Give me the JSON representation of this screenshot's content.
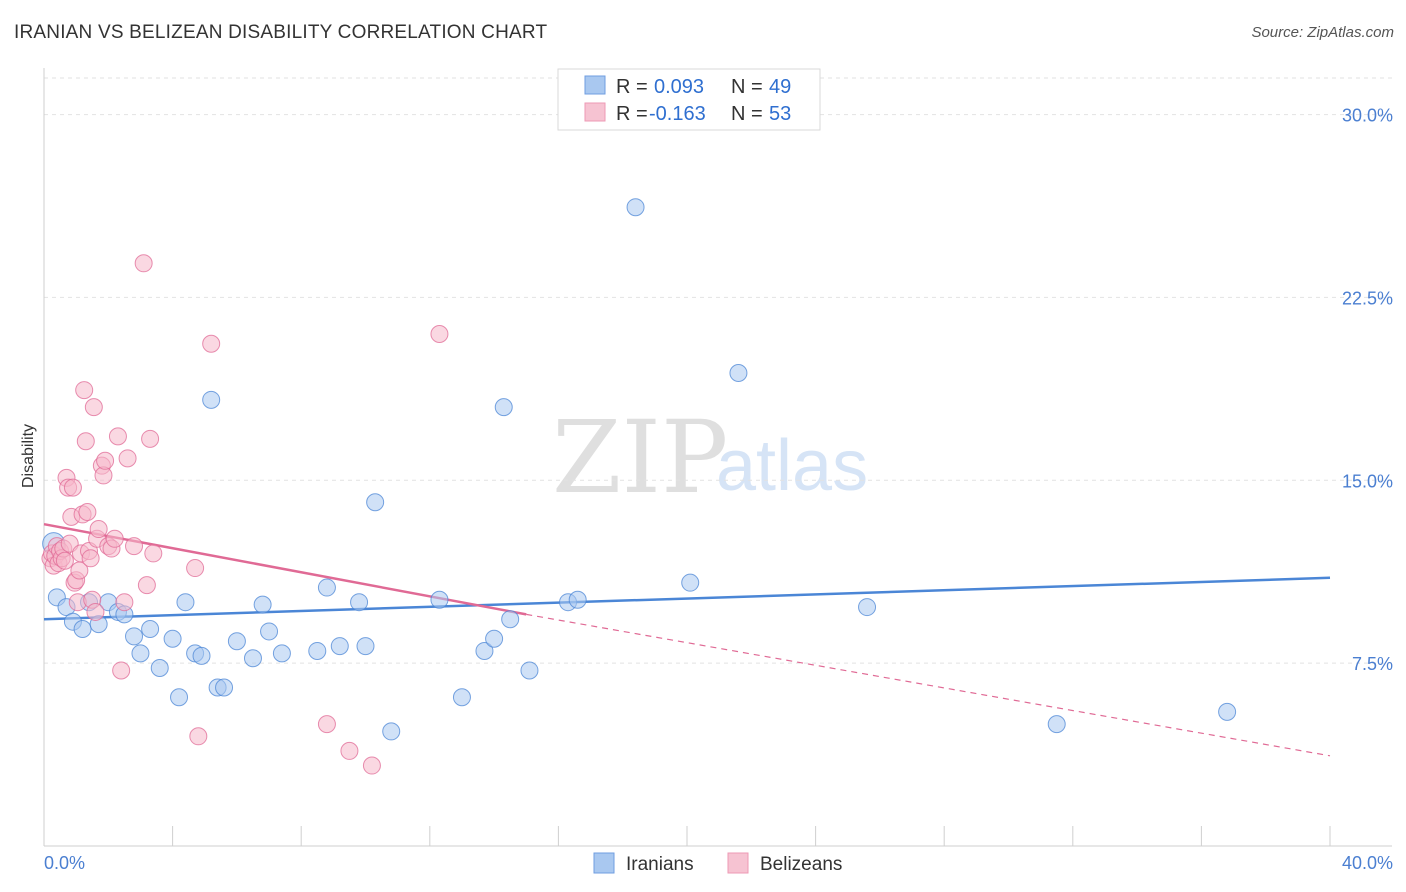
{
  "title": "IRANIAN VS BELIZEAN DISABILITY CORRELATION CHART",
  "source": "Source: ZipAtlas.com",
  "watermark": {
    "zip": "ZIP",
    "atlas": "atlas"
  },
  "legend": {
    "rows": [
      {
        "r_label": "R =",
        "r_value": "0.093",
        "n_label": "N =",
        "n_value": "49",
        "color": "#a9c8f0"
      },
      {
        "r_label": "R =",
        "r_value": "-0.163",
        "n_label": "N =",
        "n_value": "53",
        "color": "#f6b8cb"
      }
    ]
  },
  "bottom_legend": [
    "Iranians",
    "Belizeans"
  ],
  "chart_data": {
    "type": "scatter",
    "title": "IRANIAN VS BELIZEAN DISABILITY CORRELATION CHART",
    "xlabel": "",
    "ylabel": "Disability",
    "xlim": [
      0,
      40
    ],
    "ylim": [
      0,
      31.5
    ],
    "x_tick_labels": [
      "0.0%",
      "40.0%"
    ],
    "y_ticks": [
      7.5,
      15.0,
      22.5,
      30.0
    ],
    "y_tick_labels": [
      "7.5%",
      "15.0%",
      "22.5%",
      "30.0%"
    ],
    "grid": true,
    "legend_position": "top-center",
    "series": [
      {
        "name": "Iranians",
        "color": "#4b86d6",
        "fill": "#a9c8f0",
        "trend": {
          "x0": 0,
          "y0": 9.3,
          "x1": 40,
          "y1": 11.0
        },
        "points": [
          [
            0.3,
            12.4
          ],
          [
            0.4,
            10.2
          ],
          [
            0.7,
            9.8
          ],
          [
            0.9,
            9.2
          ],
          [
            1.2,
            8.9
          ],
          [
            1.4,
            10.0
          ],
          [
            1.7,
            9.1
          ],
          [
            2.0,
            10.0
          ],
          [
            2.3,
            9.6
          ],
          [
            2.5,
            9.5
          ],
          [
            2.8,
            8.6
          ],
          [
            3.0,
            7.9
          ],
          [
            3.3,
            8.9
          ],
          [
            3.6,
            7.3
          ],
          [
            4.0,
            8.5
          ],
          [
            4.2,
            6.1
          ],
          [
            4.4,
            10.0
          ],
          [
            4.7,
            7.9
          ],
          [
            4.9,
            7.8
          ],
          [
            5.2,
            18.3
          ],
          [
            5.4,
            6.5
          ],
          [
            5.6,
            6.5
          ],
          [
            6.0,
            8.4
          ],
          [
            6.5,
            7.7
          ],
          [
            6.8,
            9.9
          ],
          [
            7.0,
            8.8
          ],
          [
            7.4,
            7.9
          ],
          [
            8.5,
            8.0
          ],
          [
            8.8,
            10.6
          ],
          [
            9.2,
            8.2
          ],
          [
            9.8,
            10.0
          ],
          [
            10.0,
            8.2
          ],
          [
            10.3,
            14.1
          ],
          [
            10.8,
            4.7
          ],
          [
            12.3,
            10.1
          ],
          [
            13.0,
            6.1
          ],
          [
            13.7,
            8.0
          ],
          [
            14.0,
            8.5
          ],
          [
            14.3,
            18.0
          ],
          [
            14.5,
            9.3
          ],
          [
            15.1,
            7.2
          ],
          [
            16.3,
            10.0
          ],
          [
            16.6,
            10.1
          ],
          [
            18.4,
            26.2
          ],
          [
            20.1,
            10.8
          ],
          [
            21.6,
            19.4
          ],
          [
            25.6,
            9.8
          ],
          [
            31.5,
            5.0
          ],
          [
            36.8,
            5.5
          ]
        ]
      },
      {
        "name": "Belizeans",
        "color": "#e06a95",
        "fill": "#f6b8cb",
        "trend": {
          "x0": 0,
          "y0": 13.2,
          "x1": 15.0,
          "y1": 9.5,
          "dash_x1": 40,
          "dash_y1": 3.7
        },
        "points": [
          [
            0.2,
            11.8
          ],
          [
            0.25,
            12.0
          ],
          [
            0.3,
            11.5
          ],
          [
            0.35,
            11.9
          ],
          [
            0.4,
            12.3
          ],
          [
            0.45,
            11.6
          ],
          [
            0.5,
            12.1
          ],
          [
            0.55,
            11.8
          ],
          [
            0.6,
            12.2
          ],
          [
            0.65,
            11.7
          ],
          [
            0.7,
            15.1
          ],
          [
            0.75,
            14.7
          ],
          [
            0.8,
            12.4
          ],
          [
            0.85,
            13.5
          ],
          [
            0.9,
            14.7
          ],
          [
            0.95,
            10.8
          ],
          [
            1.0,
            10.9
          ],
          [
            1.05,
            10.0
          ],
          [
            1.1,
            11.3
          ],
          [
            1.15,
            12.0
          ],
          [
            1.2,
            13.6
          ],
          [
            1.25,
            18.7
          ],
          [
            1.3,
            16.6
          ],
          [
            1.35,
            13.7
          ],
          [
            1.4,
            12.1
          ],
          [
            1.45,
            11.8
          ],
          [
            1.5,
            10.1
          ],
          [
            1.55,
            18.0
          ],
          [
            1.6,
            9.6
          ],
          [
            1.65,
            12.6
          ],
          [
            1.7,
            13.0
          ],
          [
            1.8,
            15.6
          ],
          [
            1.85,
            15.2
          ],
          [
            1.9,
            15.8
          ],
          [
            2.0,
            12.3
          ],
          [
            2.1,
            12.2
          ],
          [
            2.2,
            12.6
          ],
          [
            2.3,
            16.8
          ],
          [
            2.4,
            7.2
          ],
          [
            2.5,
            10.0
          ],
          [
            2.6,
            15.9
          ],
          [
            2.8,
            12.3
          ],
          [
            3.1,
            23.9
          ],
          [
            3.2,
            10.7
          ],
          [
            3.3,
            16.7
          ],
          [
            3.4,
            12.0
          ],
          [
            4.7,
            11.4
          ],
          [
            4.8,
            4.5
          ],
          [
            5.2,
            20.6
          ],
          [
            8.8,
            5.0
          ],
          [
            9.5,
            3.9
          ],
          [
            10.2,
            3.3
          ],
          [
            12.3,
            21.0
          ]
        ]
      }
    ]
  }
}
